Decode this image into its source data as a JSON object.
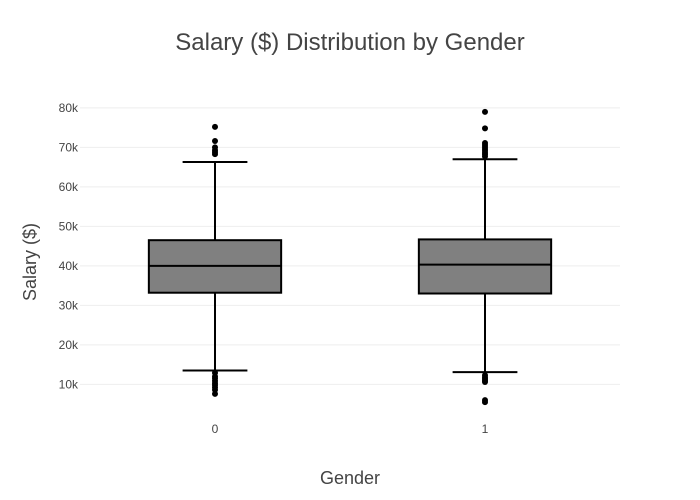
{
  "chart_data": {
    "type": "box",
    "title": "Salary ($) Distribution by Gender",
    "xlabel": "Gender",
    "ylabel": "Salary ($)",
    "categories": [
      "0",
      "1"
    ],
    "yticks": [
      10000,
      20000,
      30000,
      40000,
      50000,
      60000,
      70000,
      80000
    ],
    "ytick_labels": [
      "10k",
      "20k",
      "30k",
      "40k",
      "50k",
      "60k",
      "70k",
      "80k"
    ],
    "ylim": [
      3000,
      82500
    ],
    "grid": true,
    "box_color": "#808080",
    "line_color": "#000000",
    "boxes": [
      {
        "category": "0",
        "lowerfence": 13500,
        "q1": 33200,
        "median": 40000,
        "q3": 46500,
        "upperfence": 66300,
        "outliers": [
          7600,
          8600,
          9200,
          9800,
          10300,
          10900,
          11500,
          12000,
          12900,
          68300,
          68800,
          69300,
          70000,
          71600,
          75200
        ]
      },
      {
        "category": "1",
        "lowerfence": 13100,
        "q1": 33000,
        "median": 40300,
        "q3": 46700,
        "upperfence": 67000,
        "outliers": [
          5500,
          6000,
          10600,
          11000,
          11400,
          11800,
          12300,
          67700,
          68200,
          68600,
          69100,
          69600,
          70100,
          70600,
          71100,
          74800,
          79000
        ]
      }
    ]
  }
}
